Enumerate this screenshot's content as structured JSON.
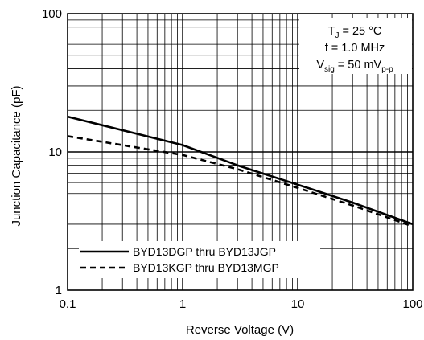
{
  "chart_data": {
    "type": "line",
    "x_scale": "log",
    "y_scale": "log",
    "xlim": [
      0.1,
      100
    ],
    "ylim": [
      1,
      100
    ],
    "grid": true,
    "legend_placement": "bottom-left",
    "xlabel": "Reverse Voltage (V)",
    "ylabel": "Junction Capacitance (pF)",
    "x_ticks": [
      "0.1",
      "1",
      "10",
      "100"
    ],
    "y_ticks": [
      "1",
      "10",
      "100"
    ],
    "conditions": [
      {
        "main": "T",
        "sub": "J",
        "rest": " = 25 °C"
      },
      {
        "main": "f = 1.0 MHz",
        "sub": "",
        "rest": ""
      },
      {
        "main": "V",
        "sub": "sig",
        "rest": " = 50 mV",
        "sub2": "p-p"
      }
    ],
    "series": [
      {
        "name": "BYD13DGP thru BYD13JGP",
        "style": "solid",
        "color": "#000000",
        "x": [
          0.1,
          1,
          3,
          10,
          30,
          100
        ],
        "y": [
          18,
          11.2,
          8,
          5.8,
          4.3,
          3.0
        ]
      },
      {
        "name": "BYD13KGP thru BYD13MGP",
        "style": "dashed",
        "color": "#000000",
        "x": [
          0.1,
          1,
          3,
          10,
          30,
          100
        ],
        "y": [
          13,
          9.5,
          7.5,
          5.5,
          4.1,
          2.9
        ]
      }
    ]
  }
}
